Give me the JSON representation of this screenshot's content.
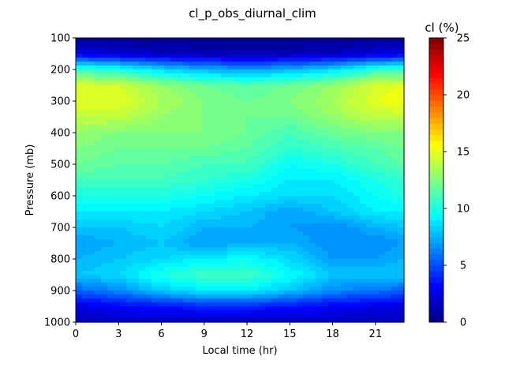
{
  "chart_data": {
    "type": "heatmap",
    "title": "cl_p_obs_diurnal_clim",
    "xlabel": "Local time (hr)",
    "ylabel": "Pressure (mb)",
    "colorbar_label": "cl (%)",
    "colormap": "jet",
    "x_range": [
      0,
      23
    ],
    "y_range": [
      1000,
      100
    ],
    "y_inverted": true,
    "x_ticks": [
      0,
      3,
      6,
      9,
      12,
      15,
      18,
      21
    ],
    "y_ticks": [
      100,
      200,
      300,
      400,
      500,
      600,
      700,
      800,
      900,
      1000
    ],
    "colorbar_range": [
      0,
      25
    ],
    "colorbar_ticks": [
      0,
      5,
      10,
      15,
      20,
      25
    ],
    "x": [
      0,
      3,
      6,
      9,
      12,
      15,
      18,
      21,
      23
    ],
    "y": [
      100,
      150,
      200,
      250,
      300,
      350,
      400,
      450,
      500,
      550,
      600,
      650,
      700,
      750,
      800,
      850,
      900,
      950,
      1000
    ],
    "z": [
      [
        0.5,
        0.5,
        0.5,
        0.5,
        0.5,
        0.5,
        0.5,
        0.5,
        0.5
      ],
      [
        2.5,
        2.0,
        1.5,
        1.2,
        1.2,
        1.2,
        1.5,
        2.2,
        2.5
      ],
      [
        11.0,
        10.0,
        8.5,
        7.5,
        7.0,
        7.5,
        8.5,
        10.5,
        11.0
      ],
      [
        14.5,
        14.5,
        13.0,
        12.0,
        11.5,
        12.0,
        13.0,
        14.5,
        15.0
      ],
      [
        15.0,
        15.0,
        13.5,
        12.5,
        12.0,
        12.5,
        13.5,
        15.0,
        15.5
      ],
      [
        14.0,
        14.0,
        13.0,
        12.5,
        12.0,
        12.0,
        13.0,
        14.0,
        14.0
      ],
      [
        13.0,
        12.5,
        12.5,
        12.5,
        12.0,
        11.0,
        12.0,
        12.5,
        12.5
      ],
      [
        12.5,
        12.0,
        12.0,
        12.0,
        11.5,
        10.5,
        11.0,
        11.5,
        12.0
      ],
      [
        12.0,
        11.5,
        11.5,
        11.0,
        11.0,
        9.5,
        10.0,
        11.0,
        11.5
      ],
      [
        11.0,
        11.0,
        11.0,
        10.5,
        10.0,
        9.0,
        9.0,
        10.0,
        10.5
      ],
      [
        10.0,
        10.0,
        10.0,
        9.5,
        9.0,
        8.5,
        8.5,
        9.5,
        10.0
      ],
      [
        9.0,
        9.0,
        9.0,
        8.5,
        8.0,
        7.0,
        8.0,
        9.0,
        9.0
      ],
      [
        8.0,
        8.0,
        8.5,
        7.5,
        7.5,
        7.0,
        6.5,
        7.5,
        8.0
      ],
      [
        7.0,
        7.5,
        8.0,
        7.0,
        7.5,
        7.5,
        6.5,
        6.5,
        7.0
      ],
      [
        7.5,
        8.0,
        8.5,
        9.0,
        9.5,
        8.5,
        7.0,
        7.0,
        7.5
      ],
      [
        8.0,
        8.5,
        10.0,
        11.0,
        11.0,
        9.5,
        8.0,
        8.0,
        8.0
      ],
      [
        5.5,
        6.5,
        8.0,
        9.0,
        9.0,
        8.0,
        6.5,
        6.0,
        5.5
      ],
      [
        2.5,
        3.0,
        3.5,
        4.0,
        4.0,
        3.5,
        3.0,
        2.5,
        2.5
      ],
      [
        1.5,
        1.5,
        1.5,
        1.5,
        1.5,
        1.5,
        1.5,
        1.5,
        1.5
      ]
    ]
  }
}
